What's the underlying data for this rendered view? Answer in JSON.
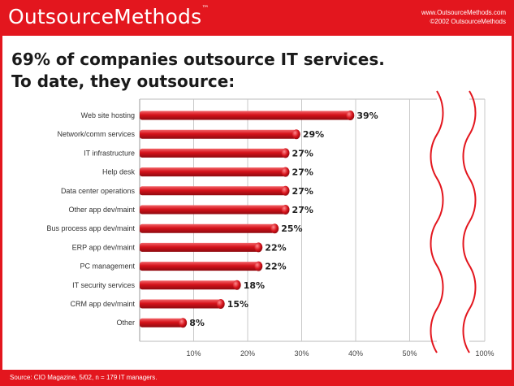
{
  "header": {
    "brand": "OutsourceMethods",
    "brand_tm": "™",
    "url": "www.OutsourceMethods.com",
    "copyright": "©2002 OutsourceMethods"
  },
  "title_line1": "69% of companies outsource IT services.",
  "title_line2": "To date, they outsource:",
  "footer": "Source: CIO Magazine, 5/02, n = 179 IT managers.",
  "colors": {
    "accent": "#e3161e",
    "bar": "#d5121a"
  },
  "chart_data": {
    "type": "bar",
    "orientation": "horizontal",
    "categories": [
      "Web site hosting",
      "Network/comm services",
      "IT infrastructure",
      "Help desk",
      "Data center operations",
      "Other app dev/maint",
      "Bus process app dev/maint",
      "ERP app dev/maint",
      "PC management",
      "IT security services",
      "CRM app dev/maint",
      "Other"
    ],
    "values": [
      39,
      29,
      27,
      27,
      27,
      27,
      25,
      22,
      22,
      18,
      15,
      8
    ],
    "value_labels": [
      "39%",
      "29%",
      "27%",
      "27%",
      "27%",
      "27%",
      "25%",
      "22%",
      "22%",
      "18%",
      "15%",
      "8%"
    ],
    "x_ticks": [
      10,
      20,
      30,
      40,
      50,
      100
    ],
    "x_tick_labels": [
      "10%",
      "20%",
      "30%",
      "40%",
      "50%",
      "100%"
    ],
    "xlim": [
      0,
      100
    ],
    "axis_break": "between 50% and 100%",
    "grid": true
  }
}
